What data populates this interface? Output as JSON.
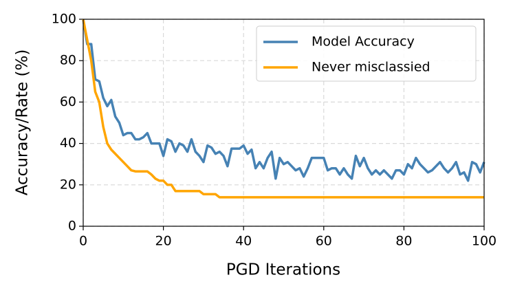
{
  "chart_data": {
    "type": "line",
    "xlabel": "PGD Iterations",
    "ylabel": "Accuracy/Rate (%)",
    "x": [
      0,
      1,
      2,
      3,
      4,
      5,
      6,
      7,
      8,
      9,
      10,
      11,
      12,
      13,
      14,
      15,
      16,
      17,
      18,
      19,
      20,
      21,
      22,
      23,
      24,
      25,
      26,
      27,
      28,
      29,
      30,
      31,
      32,
      33,
      34,
      35,
      36,
      37,
      38,
      39,
      40,
      41,
      42,
      43,
      44,
      45,
      46,
      47,
      48,
      49,
      50,
      51,
      52,
      53,
      54,
      55,
      56,
      57,
      58,
      59,
      60,
      61,
      62,
      63,
      64,
      65,
      66,
      67,
      68,
      69,
      70,
      71,
      72,
      73,
      74,
      75,
      76,
      77,
      78,
      79,
      80,
      81,
      82,
      83,
      84,
      85,
      86,
      87,
      88,
      89,
      90,
      91,
      92,
      93,
      94,
      95,
      96,
      97,
      98,
      99,
      100
    ],
    "series": [
      {
        "name": "Model Accuracy",
        "color": "#4682b4",
        "values": [
          100,
          88,
          88,
          71,
          70,
          62,
          58,
          61,
          53,
          50,
          44,
          45,
          45,
          42,
          42,
          43,
          45,
          40,
          40,
          40,
          34,
          42,
          41,
          36,
          40,
          39,
          36,
          42,
          36,
          34,
          31,
          39,
          38,
          35,
          36,
          34,
          29,
          37.5,
          37.5,
          37.5,
          39,
          35,
          37,
          28,
          31,
          28,
          33,
          36,
          23,
          33,
          30,
          31,
          29,
          27,
          28,
          24,
          28,
          33,
          33,
          33,
          33,
          27,
          28,
          28,
          25,
          28,
          25,
          23,
          34,
          29,
          33,
          28,
          25,
          27,
          25,
          27,
          25,
          23,
          27,
          27,
          25,
          30,
          28,
          33,
          30,
          28,
          26,
          27,
          29,
          31,
          28,
          26,
          28,
          31,
          25,
          26,
          22,
          31,
          30,
          26,
          31
        ]
      },
      {
        "name": "Never misclassied",
        "color": "#ffa500",
        "values": [
          100,
          90,
          80,
          65,
          60,
          48,
          40,
          37,
          35,
          33,
          31,
          29,
          27,
          26.5,
          26.5,
          26.5,
          26.5,
          25,
          23,
          22,
          22,
          20,
          20,
          17,
          17,
          17,
          17,
          17,
          17,
          17,
          15.5,
          15.5,
          15.5,
          15.5,
          14,
          14,
          14,
          14,
          14,
          14,
          14,
          14,
          14,
          14,
          14,
          14,
          14,
          14,
          14,
          14,
          14,
          14,
          14,
          14,
          14,
          14,
          14,
          14,
          14,
          14,
          14,
          14,
          14,
          14,
          14,
          14,
          14,
          14,
          14,
          14,
          14,
          14,
          14,
          14,
          14,
          14,
          14,
          14,
          14,
          14,
          14,
          14,
          14,
          14,
          14,
          14,
          14,
          14,
          14,
          14,
          14,
          14,
          14,
          14,
          14,
          14,
          14,
          14,
          14,
          14,
          14
        ]
      }
    ],
    "xlim": [
      0,
      100
    ],
    "xticks": [
      0,
      20,
      40,
      60,
      80,
      100
    ],
    "ylim": [
      0,
      100
    ],
    "yticks": [
      0,
      20,
      40,
      60,
      80,
      100
    ],
    "grid": true,
    "legend": "upper right"
  }
}
